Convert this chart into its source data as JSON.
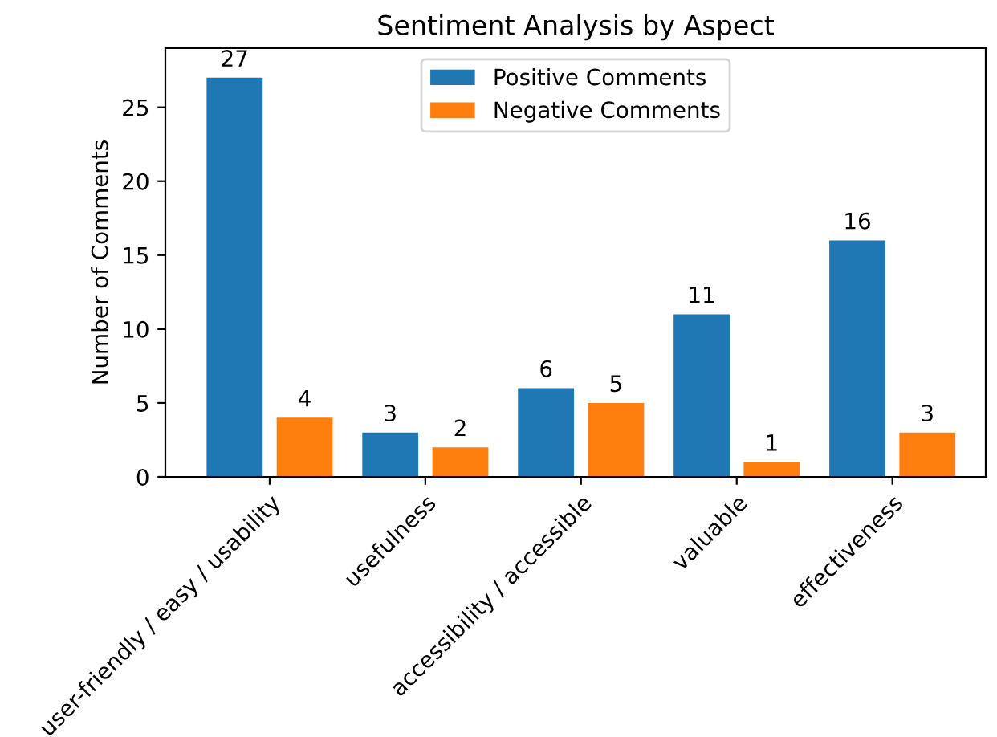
{
  "chart_data": {
    "type": "bar",
    "title": "Sentiment Analysis by Aspect",
    "ylabel": "Number of Comments",
    "categories": [
      "user-friendly / easy / usability",
      "usefulness",
      "accessibility / accessible",
      "valuable",
      "effectiveness"
    ],
    "series": [
      {
        "name": "Positive Comments",
        "color": "#1f77b4",
        "values": [
          27,
          3,
          6,
          11,
          16
        ]
      },
      {
        "name": "Negative Comments",
        "color": "#ff7f0e",
        "values": [
          4,
          2,
          5,
          1,
          3
        ]
      }
    ],
    "ylim": [
      0,
      29
    ],
    "yticks": [
      0,
      5,
      10,
      15,
      20,
      25
    ],
    "data_labels": true,
    "legend": "top",
    "grid": false
  }
}
